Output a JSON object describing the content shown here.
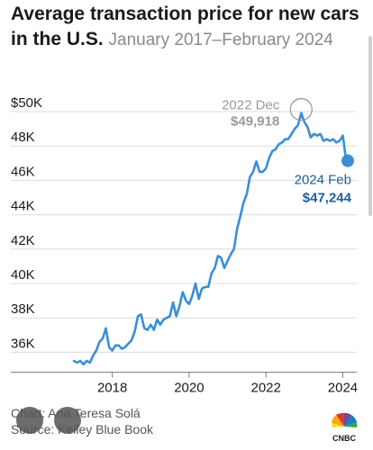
{
  "title_main": "Average transaction price for new cars in the U.S.",
  "title_sub": "January 2017–February 2024",
  "footer": {
    "chart_credit": "Chart: Ana Teresa Solá",
    "source": "Source: Kelley Blue Book"
  },
  "logo_text": "CNBC",
  "chart_data": {
    "type": "line",
    "title": "Average transaction price for new cars in the U.S.",
    "subtitle": "January 2017–February 2024",
    "xlabel": "",
    "ylabel": "",
    "x_ticks": [
      "2018",
      "2020",
      "2022",
      "2024"
    ],
    "y_ticks": [
      "$50K",
      "48K",
      "46K",
      "44K",
      "42K",
      "40K",
      "38K",
      "36K"
    ],
    "ylim": [
      35400,
      50800
    ],
    "xlim": [
      2016.75,
      2024.35
    ],
    "grid": "horizontal",
    "series_color": "#3a8fd6",
    "annotations": [
      {
        "date": "2022 Dec",
        "value": "$49,918",
        "style": "peak"
      },
      {
        "date": "2024 Feb",
        "value": "$47,244",
        "style": "latest"
      }
    ],
    "series": [
      {
        "x": [
          2017.0,
          2017.083,
          2017.167,
          2017.25,
          2017.333,
          2017.417,
          2017.5,
          2017.583,
          2017.667,
          2017.75,
          2017.833,
          2017.917,
          2018.0,
          2018.083,
          2018.167,
          2018.25,
          2018.333,
          2018.417,
          2018.5,
          2018.583,
          2018.667,
          2018.75,
          2018.833,
          2018.917,
          2019.0,
          2019.083,
          2019.167,
          2019.25,
          2019.333,
          2019.417,
          2019.5,
          2019.583,
          2019.667,
          2019.75,
          2019.833,
          2019.917,
          2020.0,
          2020.083,
          2020.167,
          2020.25,
          2020.333,
          2020.417,
          2020.5,
          2020.583,
          2020.667,
          2020.75,
          2020.833,
          2020.917,
          2021.0,
          2021.083,
          2021.167,
          2021.25,
          2021.333,
          2021.417,
          2021.5,
          2021.583,
          2021.667,
          2021.75,
          2021.833,
          2021.917,
          2022.0,
          2022.083,
          2022.167,
          2022.25,
          2022.333,
          2022.417,
          2022.5,
          2022.583,
          2022.667,
          2022.75,
          2022.833,
          2022.917,
          2023.0,
          2023.083,
          2023.167,
          2023.25,
          2023.333,
          2023.417,
          2023.5,
          2023.583,
          2023.667,
          2023.75,
          2023.833,
          2023.917,
          2024.0,
          2024.083
        ],
        "y": [
          35500,
          35400,
          35500,
          35300,
          35500,
          35400,
          35800,
          36100,
          36600,
          36800,
          37400,
          36300,
          36100,
          36400,
          36400,
          36200,
          36300,
          36500,
          36700,
          37200,
          38100,
          38200,
          37400,
          37300,
          37600,
          37300,
          37900,
          37600,
          37900,
          38000,
          38100,
          38900,
          38100,
          38700,
          39500,
          39000,
          38800,
          39300,
          40000,
          39100,
          39700,
          39800,
          39800,
          40600,
          40900,
          41600,
          41500,
          40900,
          41300,
          41700,
          42000,
          43200,
          43900,
          44700,
          45200,
          46200,
          46500,
          47100,
          46500,
          46500,
          46700,
          47300,
          47700,
          47800,
          48100,
          48200,
          48400,
          48400,
          48700,
          49000,
          49200,
          49918,
          49400,
          49100,
          48500,
          48700,
          48600,
          48700,
          48300,
          48400,
          48300,
          48400,
          48200,
          48300,
          48600,
          47244
        ]
      }
    ]
  }
}
